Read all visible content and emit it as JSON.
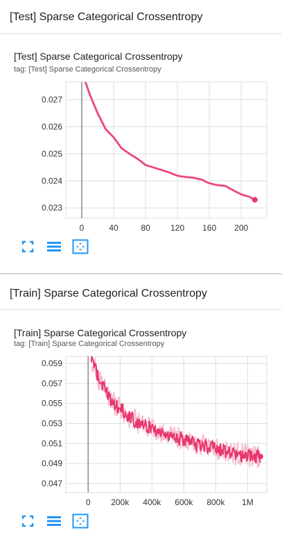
{
  "sections": [
    {
      "header": "[Test] Sparse Categorical Crossentropy",
      "card_title": "[Test] Sparse Categorical Crossentropy",
      "card_tag": "tag: [Test] Sparse Categorical Crossentropy"
    },
    {
      "header": "[Train] Sparse Categorical Crossentropy",
      "card_title": "[Train] Sparse Categorical Crossentropy",
      "card_tag": "tag: [Train] Sparse Categorical Crossentropy"
    }
  ],
  "toolbar_icons": [
    "fullscreen-icon",
    "list-icon",
    "fit-domain-icon"
  ],
  "colors": {
    "line": "#e8366d",
    "smoothing_halo": "#f7bfd0",
    "grid": "#dddddd",
    "axis": "#888888",
    "toolbar": "#2196f3"
  },
  "chart_data": [
    {
      "type": "line",
      "title": "[Test] Sparse Categorical Crossentropy",
      "xlim": [
        -20,
        232
      ],
      "ylim": [
        0.02262,
        0.02766
      ],
      "xticks": [
        0,
        40,
        80,
        120,
        160,
        200
      ],
      "xtick_labels": [
        "0",
        "40",
        "80",
        "120",
        "160",
        "200"
      ],
      "yticks": [
        0.023,
        0.024,
        0.025,
        0.026,
        0.027
      ],
      "ytick_labels": [
        "0.023",
        "0.024",
        "0.025",
        "0.026",
        "0.027"
      ],
      "grid": true,
      "series": [
        {
          "x": [
            3,
            10,
            20,
            30,
            40,
            50,
            60,
            70,
            80,
            90,
            100,
            110,
            120,
            130,
            140,
            150,
            160,
            170,
            180,
            190,
            200,
            210,
            217
          ],
          "y": [
            0.0278,
            0.0272,
            0.0265,
            0.0259,
            0.0256,
            0.0252,
            0.025,
            0.0248,
            0.0246,
            0.0245,
            0.0244,
            0.0243,
            0.0242,
            0.02415,
            0.0241,
            0.02405,
            0.0239,
            0.02385,
            0.0238,
            0.02365,
            0.0235,
            0.0234,
            0.0233
          ]
        }
      ]
    },
    {
      "type": "line",
      "title": "[Train] Sparse Categorical Crossentropy",
      "xlim": [
        -140000,
        1120000
      ],
      "ylim": [
        0.0461,
        0.0597
      ],
      "xticks": [
        0,
        200000,
        400000,
        600000,
        800000,
        1000000
      ],
      "xtick_labels": [
        "0",
        "200k",
        "400k",
        "600k",
        "800k",
        "1M"
      ],
      "yticks": [
        0.047,
        0.049,
        0.051,
        0.053,
        0.055,
        0.057,
        0.059
      ],
      "ytick_labels": [
        "0.047",
        "0.049",
        "0.051",
        "0.053",
        "0.055",
        "0.057",
        "0.059"
      ],
      "grid": true,
      "series": [
        {
          "x": [
            20000,
            60000,
            100000,
            150000,
            200000,
            250000,
            300000,
            350000,
            400000,
            450000,
            500000,
            550000,
            600000,
            650000,
            700000,
            750000,
            800000,
            850000,
            900000,
            950000,
            1000000,
            1050000,
            1080000
          ],
          "y": [
            0.0595,
            0.0578,
            0.0565,
            0.0552,
            0.0545,
            0.0538,
            0.0532,
            0.0528,
            0.0525,
            0.0522,
            0.0519,
            0.0516,
            0.0513,
            0.0511,
            0.0509,
            0.0507,
            0.0505,
            0.0503,
            0.0501,
            0.0499,
            0.0498,
            0.0497,
            0.0497
          ]
        }
      ]
    }
  ]
}
